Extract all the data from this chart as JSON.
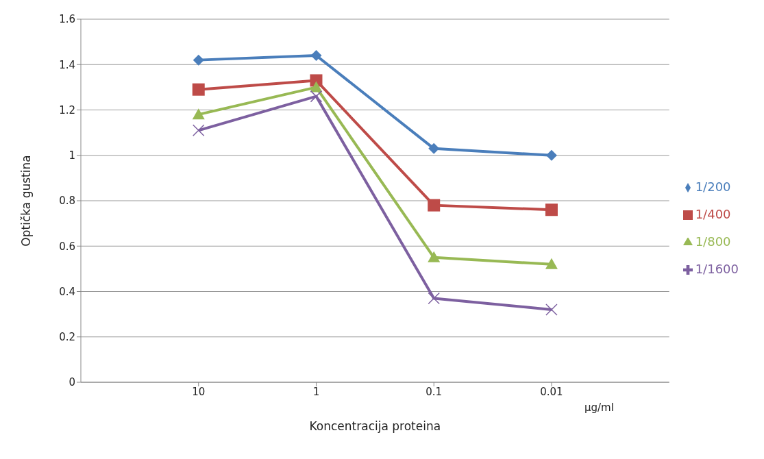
{
  "chart_data": {
    "type": "line",
    "xlabel": "Koncentracija proteina",
    "ylabel": "Optička gustina",
    "categories": [
      "10",
      "1",
      "0.1",
      "0.01"
    ],
    "series": [
      {
        "name": "1/200",
        "color": "#4a7ebb",
        "marker": "diamond",
        "values": [
          1.42,
          1.44,
          1.03,
          1.0
        ]
      },
      {
        "name": "1/400",
        "color": "#be4b48",
        "marker": "square",
        "values": [
          1.29,
          1.33,
          0.78,
          0.76
        ]
      },
      {
        "name": "1/800",
        "color": "#98b954",
        "marker": "triangle",
        "values": [
          1.18,
          1.3,
          0.55,
          0.52
        ]
      },
      {
        "name": "1/1600",
        "color": "#7d60a0",
        "marker": "cross",
        "values": [
          1.11,
          1.26,
          0.37,
          0.32
        ]
      }
    ],
    "ylim": [
      0,
      1.6
    ],
    "yticks": [
      0,
      0.2,
      0.4,
      0.6,
      0.8,
      1,
      1.2,
      1.4,
      1.6
    ],
    "grid": "y",
    "legend": "right",
    "annotations": [
      "µg/ml"
    ]
  }
}
